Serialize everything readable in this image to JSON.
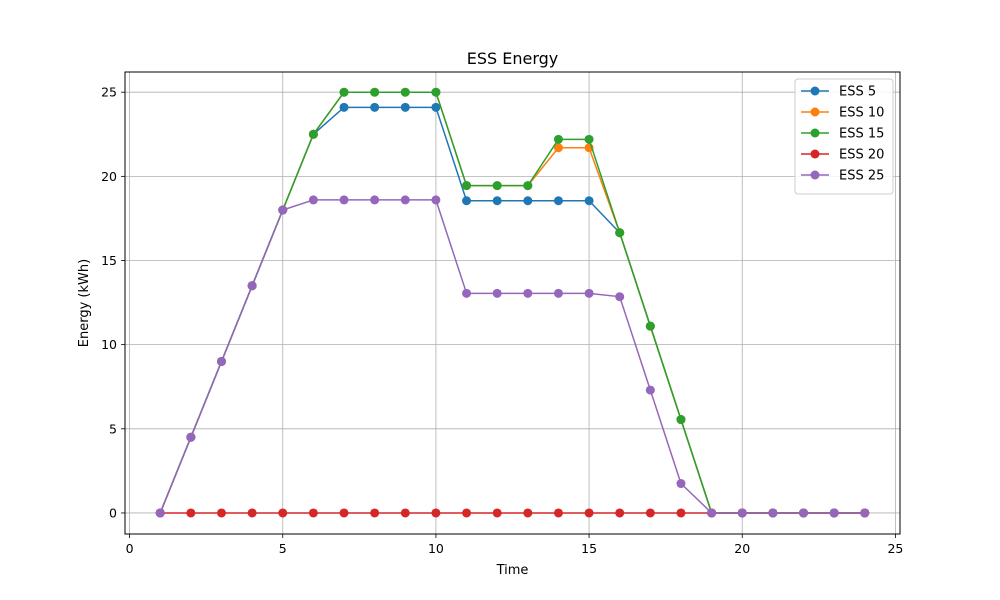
{
  "chart_data": {
    "type": "line",
    "title": "ESS Energy",
    "xlabel": "Time",
    "ylabel": "Energy (kWh)",
    "xlim": [
      -0.15,
      25.15
    ],
    "ylim": [
      -1.25,
      26.2
    ],
    "xticks": [
      0,
      5,
      10,
      15,
      20,
      25
    ],
    "yticks": [
      0,
      5,
      10,
      15,
      20,
      25
    ],
    "grid": true,
    "legend_position": "top-right",
    "x": [
      1,
      2,
      3,
      4,
      5,
      6,
      7,
      8,
      9,
      10,
      11,
      12,
      13,
      14,
      15,
      16,
      17,
      18,
      19,
      20,
      21,
      22,
      23,
      24
    ],
    "series": [
      {
        "name": "ESS 5",
        "color": "#1f77b4",
        "values": [
          0,
          4.5,
          9,
          13.5,
          18,
          22.5,
          24.1,
          24.1,
          24.1,
          24.1,
          18.55,
          18.55,
          18.55,
          18.55,
          18.55,
          16.65,
          11.1,
          5.55,
          0,
          0,
          0,
          0,
          0,
          0
        ]
      },
      {
        "name": "ESS 10",
        "color": "#ff7f0e",
        "values": [
          0,
          4.5,
          9,
          13.5,
          18,
          22.5,
          25,
          25,
          25,
          25,
          19.45,
          19.45,
          19.45,
          21.7,
          21.7,
          16.65,
          11.1,
          5.55,
          0,
          0,
          0,
          0,
          0,
          0
        ]
      },
      {
        "name": "ESS 15",
        "color": "#2ca02c",
        "values": [
          0,
          4.5,
          9,
          13.5,
          18,
          22.5,
          25,
          25,
          25,
          25,
          19.45,
          19.45,
          19.45,
          22.2,
          22.2,
          16.65,
          11.1,
          5.55,
          0,
          0,
          0,
          0,
          0,
          0
        ]
      },
      {
        "name": "ESS 20",
        "color": "#d62728",
        "values": [
          0,
          0,
          0,
          0,
          0,
          0,
          0,
          0,
          0,
          0,
          0,
          0,
          0,
          0,
          0,
          0,
          0,
          0,
          0,
          0,
          0,
          0,
          0,
          0
        ]
      },
      {
        "name": "ESS 25",
        "color": "#9467bd",
        "values": [
          0,
          4.5,
          9,
          13.5,
          18,
          18.6,
          18.6,
          18.6,
          18.6,
          18.6,
          13.05,
          13.05,
          13.05,
          13.05,
          13.05,
          12.85,
          7.3,
          1.75,
          0,
          0,
          0,
          0,
          0,
          0
        ]
      }
    ]
  }
}
